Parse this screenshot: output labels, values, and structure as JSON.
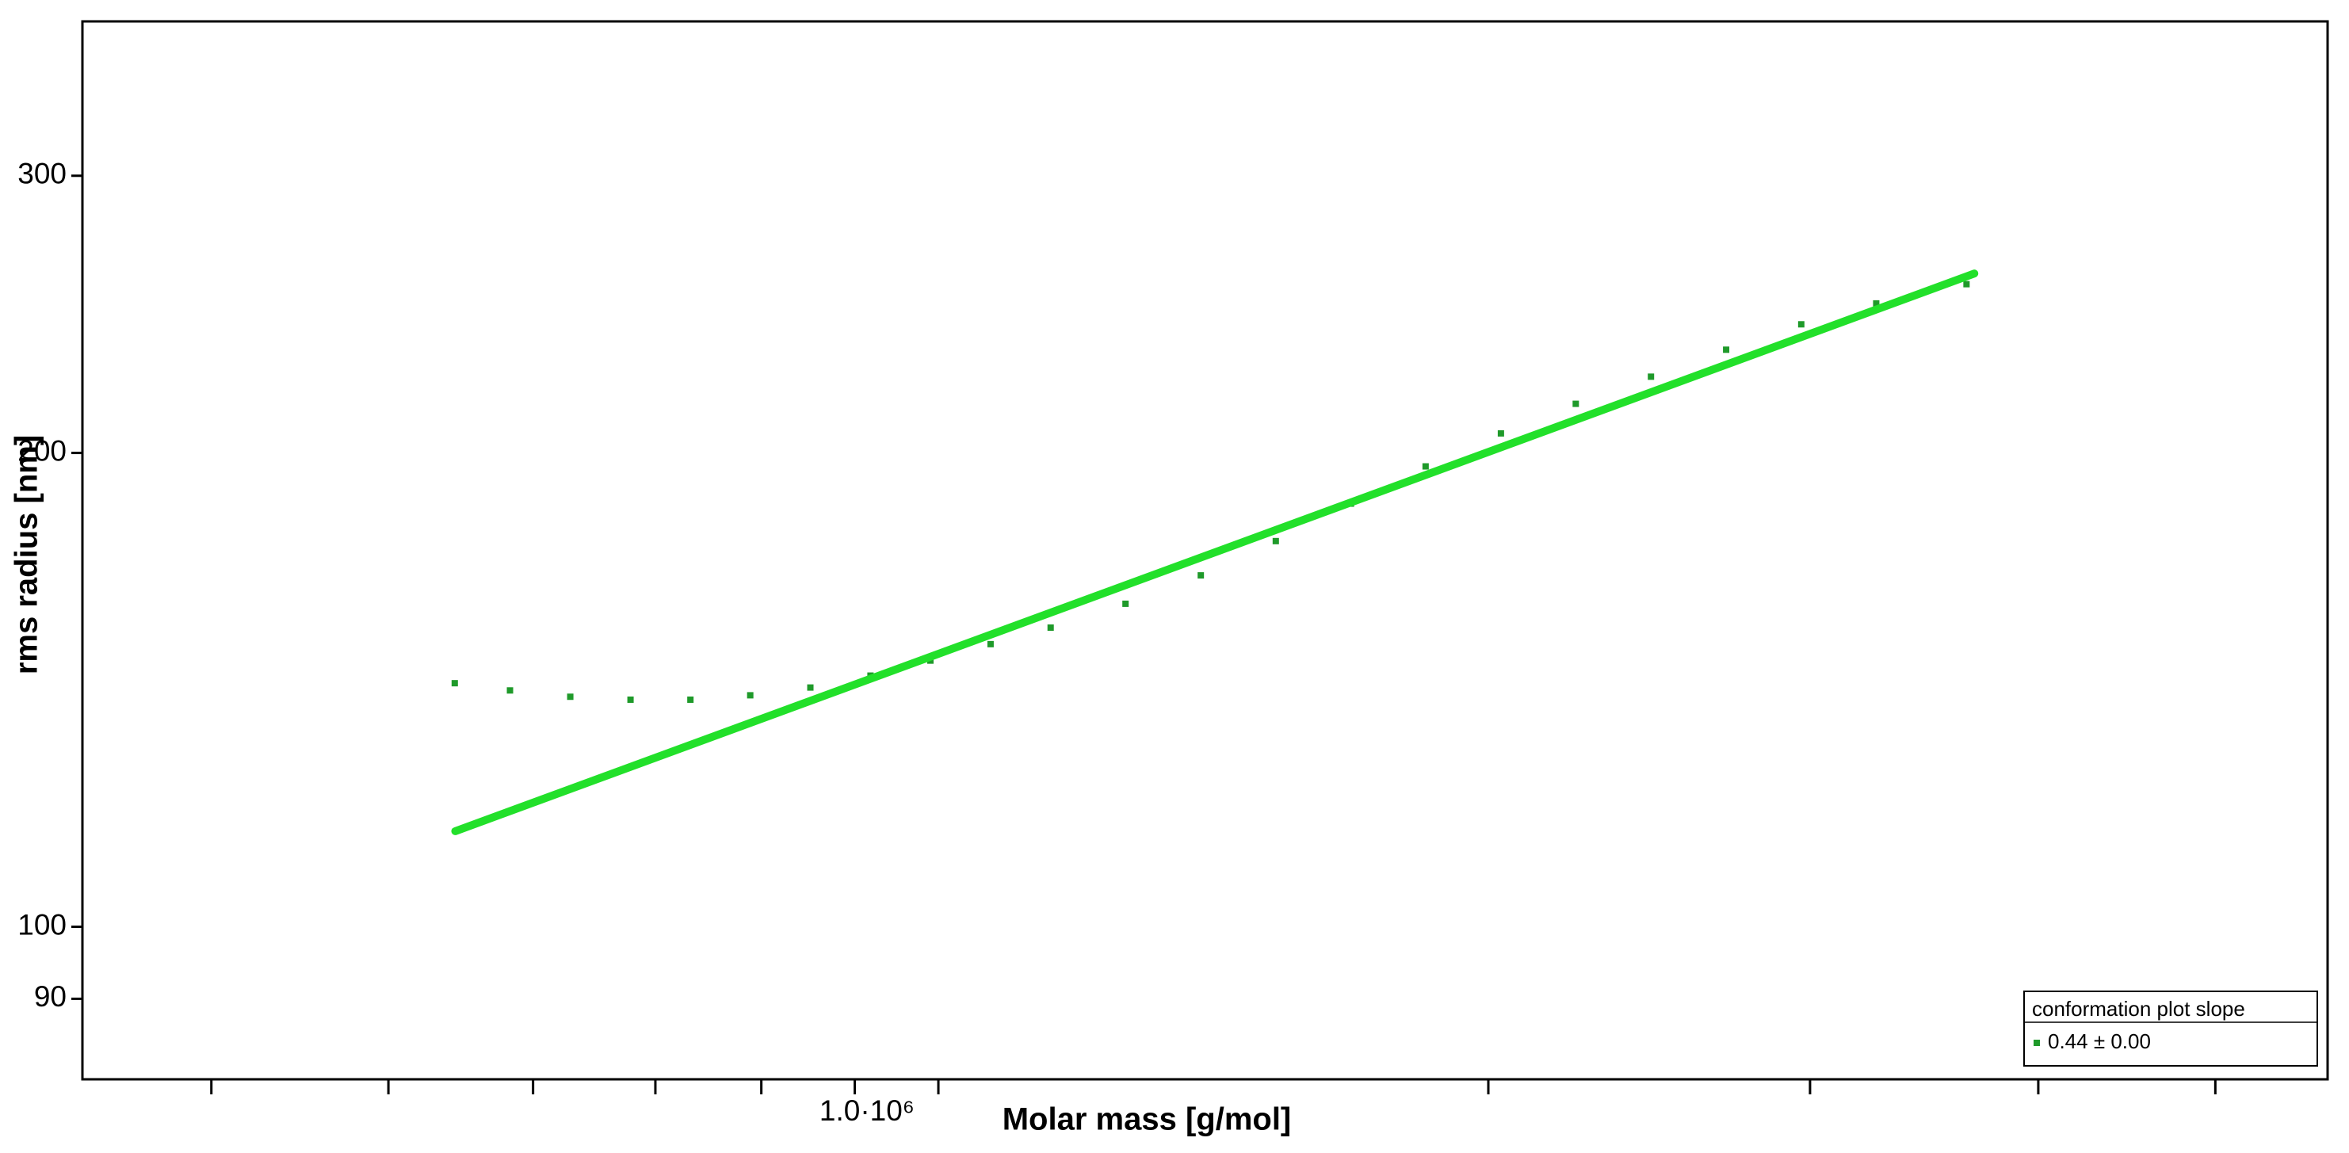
{
  "chart_data": {
    "type": "scatter",
    "x_label": "Molar mass [g/mol]",
    "y_label": "rms radius [nm]",
    "xscale": "log",
    "yscale": "log",
    "xlim": [
      340000,
      5760000
    ],
    "ylim": [
      80,
      376
    ],
    "xticks": [
      {
        "value": 1000000,
        "label": "1.0·10⁶"
      }
    ],
    "xminorticks": [
      400000,
      500000,
      600000,
      700000,
      800000,
      900000,
      2000000,
      3000000,
      4000000,
      5000000
    ],
    "yticks": [
      90,
      100,
      200,
      300
    ],
    "legend_title": "conformation plot slope",
    "legend": "lower-right",
    "series": [
      {
        "name": "0.44 ± 0.00",
        "color": "#1f9a2a",
        "style": "dots",
        "x": [
          543600,
          582800,
          628800,
          678400,
          731600,
          788900,
          851000,
          918000,
          990000,
          1068000,
          1152000,
          1266000,
          1392000,
          1530000,
          1682000,
          1848000,
          2032000,
          2233000,
          2455000,
          2699000,
          2967000,
          3261000,
          3654000
        ],
        "values": [
          142.8,
          141.3,
          140.0,
          139.4,
          139.4,
          140.3,
          141.9,
          144.4,
          147.6,
          151.2,
          154.9,
          160.4,
          167.2,
          175.8,
          185.7,
          196.1,
          205.8,
          214.9,
          223.6,
          232.6,
          241.4,
          248.9,
          256.0
        ]
      },
      {
        "color": "#22e02a",
        "style": "line",
        "x": [
          544000,
          3690000
        ],
        "values": [
          115,
          260
        ]
      }
    ]
  }
}
